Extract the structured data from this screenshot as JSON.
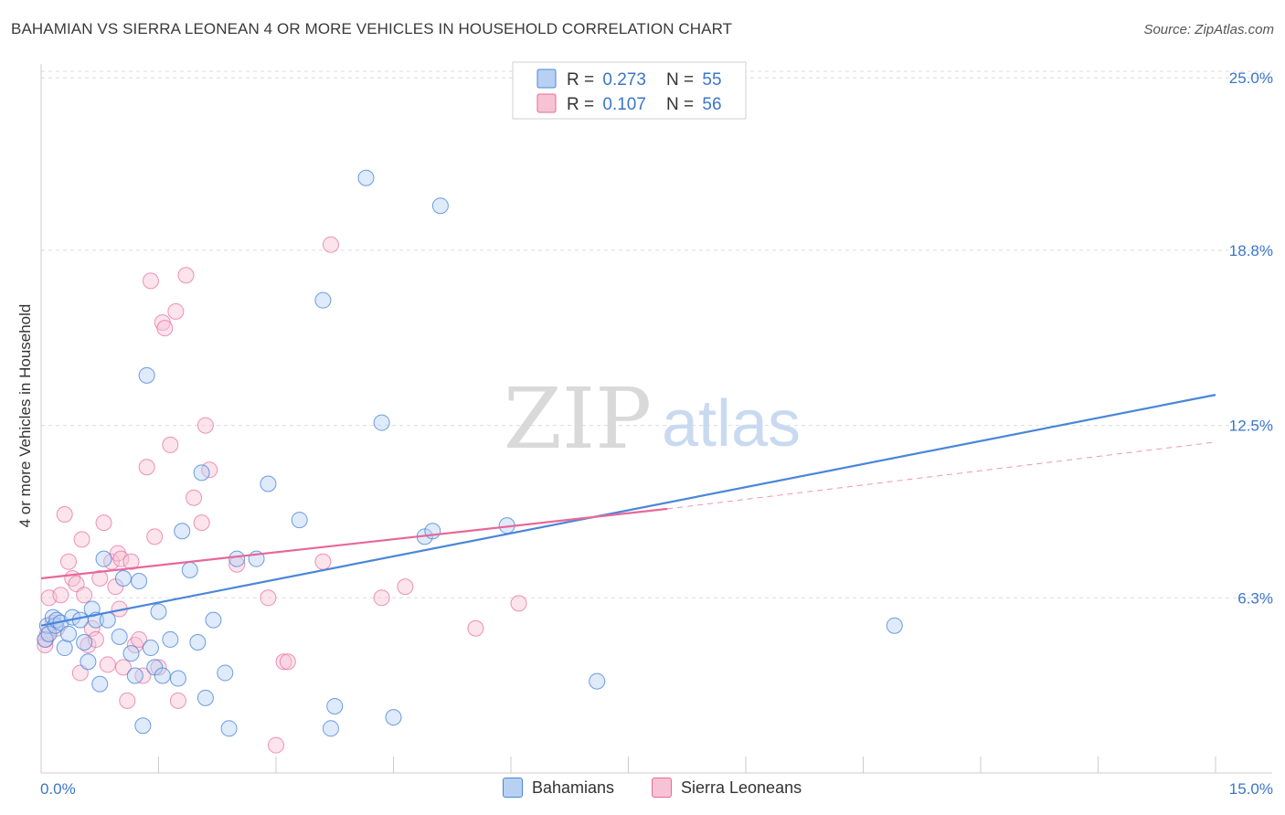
{
  "header": {
    "title": "BAHAMIAN VS SIERRA LEONEAN 4 OR MORE VEHICLES IN HOUSEHOLD CORRELATION CHART",
    "source": "Source: ZipAtlas.com"
  },
  "watermark": {
    "zip": "ZIP",
    "atlas": "atlas"
  },
  "colors": {
    "blue": "#4a86d8",
    "blue_fill": "#b8d1f3",
    "pink": "#e8679a",
    "pink_fill": "#f7c3d4",
    "axis_text": "#3b76c9",
    "grid": "#dcdcdc"
  },
  "legend": [
    {
      "r_label": "R = ",
      "r_value": "0.273",
      "n_label": "N = ",
      "n_value": "55"
    },
    {
      "r_label": "R = ",
      "r_value": "0.107",
      "n_label": "N = ",
      "n_value": "56"
    }
  ],
  "chart_data": {
    "type": "scatter",
    "title": "BAHAMIAN VS SIERRA LEONEAN 4 OR MORE VEHICLES IN HOUSEHOLD CORRELATION CHART",
    "xlabel": "",
    "ylabel": "4 or more Vehicles in Household",
    "xlim": [
      0,
      15
    ],
    "ylim": [
      0,
      25.5
    ],
    "x_tick_labels": [
      "0.0%",
      "15.0%"
    ],
    "y_ticks": [
      6.3,
      12.5,
      18.8,
      25.0
    ],
    "y_tick_labels": [
      "6.3%",
      "12.5%",
      "18.8%",
      "25.0%"
    ],
    "grid": true,
    "legend_position": "top-center",
    "series": [
      {
        "name": "Bahamians",
        "color": "#4a86d8",
        "r": 0.273,
        "n": 55,
        "trend": {
          "x": [
            0,
            15
          ],
          "y": [
            5.3,
            13.6
          ]
        },
        "points": [
          [
            0.05,
            4.8
          ],
          [
            0.08,
            5.3
          ],
          [
            0.1,
            5.0
          ],
          [
            0.15,
            5.6
          ],
          [
            0.18,
            5.3
          ],
          [
            0.2,
            5.5
          ],
          [
            0.25,
            5.4
          ],
          [
            0.3,
            4.5
          ],
          [
            0.35,
            5.0
          ],
          [
            0.4,
            5.6
          ],
          [
            0.5,
            5.5
          ],
          [
            0.55,
            4.7
          ],
          [
            0.6,
            4.0
          ],
          [
            0.65,
            5.9
          ],
          [
            0.7,
            5.5
          ],
          [
            0.75,
            3.2
          ],
          [
            0.8,
            7.7
          ],
          [
            0.85,
            5.5
          ],
          [
            1.0,
            4.9
          ],
          [
            1.05,
            7.0
          ],
          [
            1.15,
            4.3
          ],
          [
            1.2,
            3.5
          ],
          [
            1.25,
            6.9
          ],
          [
            1.3,
            1.7
          ],
          [
            1.35,
            14.3
          ],
          [
            1.4,
            4.5
          ],
          [
            1.45,
            3.8
          ],
          [
            1.55,
            3.5
          ],
          [
            1.5,
            5.8
          ],
          [
            1.65,
            4.8
          ],
          [
            1.75,
            3.4
          ],
          [
            1.8,
            8.7
          ],
          [
            1.9,
            7.3
          ],
          [
            2.0,
            4.7
          ],
          [
            2.05,
            10.8
          ],
          [
            2.1,
            2.7
          ],
          [
            2.2,
            5.5
          ],
          [
            2.35,
            3.6
          ],
          [
            2.4,
            1.6
          ],
          [
            2.5,
            7.7
          ],
          [
            2.75,
            7.7
          ],
          [
            2.9,
            10.4
          ],
          [
            3.3,
            9.1
          ],
          [
            3.6,
            17.0
          ],
          [
            3.7,
            1.6
          ],
          [
            3.75,
            2.4
          ],
          [
            4.15,
            21.4
          ],
          [
            4.35,
            12.6
          ],
          [
            4.5,
            2.0
          ],
          [
            4.9,
            8.5
          ],
          [
            5.0,
            8.7
          ],
          [
            5.1,
            20.4
          ],
          [
            5.95,
            8.9
          ],
          [
            7.1,
            3.3
          ],
          [
            10.9,
            5.3
          ]
        ]
      },
      {
        "name": "Sierra Leoneans",
        "color": "#e8679a",
        "r": 0.107,
        "n": 56,
        "trend": {
          "x": [
            0,
            8.0
          ],
          "y": [
            7.0,
            9.5
          ]
        },
        "trend_ext": {
          "x": [
            8.0,
            15
          ],
          "y": [
            9.5,
            11.9
          ]
        },
        "points": [
          [
            0.05,
            4.6
          ],
          [
            0.08,
            5.0
          ],
          [
            0.1,
            6.3
          ],
          [
            0.15,
            5.4
          ],
          [
            0.2,
            5.2
          ],
          [
            0.25,
            6.4
          ],
          [
            0.3,
            9.3
          ],
          [
            0.35,
            7.6
          ],
          [
            0.4,
            7.0
          ],
          [
            0.45,
            6.8
          ],
          [
            0.5,
            3.6
          ],
          [
            0.52,
            8.4
          ],
          [
            0.55,
            6.4
          ],
          [
            0.6,
            4.6
          ],
          [
            0.65,
            5.2
          ],
          [
            0.7,
            4.8
          ],
          [
            0.75,
            7.0
          ],
          [
            0.8,
            9.0
          ],
          [
            0.85,
            3.9
          ],
          [
            0.9,
            7.6
          ],
          [
            0.95,
            6.7
          ],
          [
            0.98,
            7.9
          ],
          [
            1.0,
            5.9
          ],
          [
            1.02,
            7.7
          ],
          [
            1.05,
            3.8
          ],
          [
            1.1,
            2.6
          ],
          [
            1.15,
            7.6
          ],
          [
            1.2,
            4.6
          ],
          [
            1.25,
            4.8
          ],
          [
            1.3,
            3.5
          ],
          [
            1.35,
            11.0
          ],
          [
            1.4,
            17.7
          ],
          [
            1.45,
            8.5
          ],
          [
            1.5,
            3.8
          ],
          [
            1.55,
            16.2
          ],
          [
            1.58,
            16.0
          ],
          [
            1.65,
            11.8
          ],
          [
            1.72,
            16.6
          ],
          [
            1.75,
            2.6
          ],
          [
            1.85,
            17.9
          ],
          [
            1.95,
            9.9
          ],
          [
            2.05,
            9.0
          ],
          [
            2.1,
            12.5
          ],
          [
            2.15,
            10.9
          ],
          [
            2.5,
            7.5
          ],
          [
            2.9,
            6.3
          ],
          [
            3.0,
            1.0
          ],
          [
            3.1,
            4.0
          ],
          [
            3.15,
            4.0
          ],
          [
            3.6,
            7.6
          ],
          [
            3.7,
            19.0
          ],
          [
            4.35,
            6.3
          ],
          [
            4.65,
            6.7
          ],
          [
            5.55,
            5.2
          ],
          [
            6.1,
            6.1
          ],
          [
            0.06,
            4.8
          ]
        ]
      }
    ]
  },
  "bottom_legend": [
    "Bahamians",
    "Sierra Leoneans"
  ]
}
